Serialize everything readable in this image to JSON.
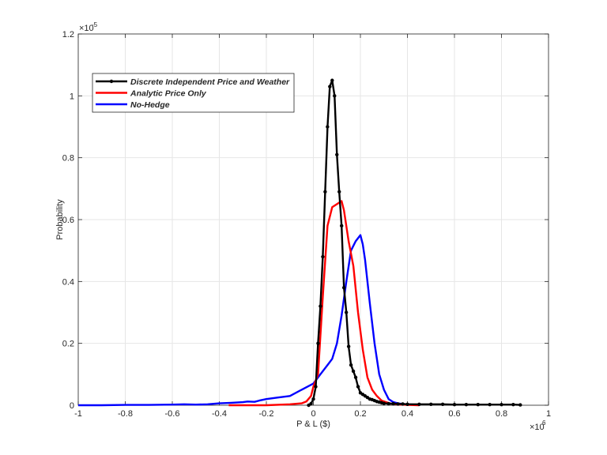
{
  "chart_data": {
    "type": "line",
    "title": "",
    "xlabel": "P & L ($)",
    "ylabel": "Probability",
    "x_exponent_label": "×10",
    "x_exponent_power": "6",
    "y_exponent_label": "×10",
    "y_exponent_power": "-5",
    "xlim": [
      -1,
      1
    ],
    "ylim": [
      0,
      1.2
    ],
    "x_ticks": [
      -1,
      -0.8,
      -0.6,
      -0.4,
      -0.2,
      0,
      0.2,
      0.4,
      0.6,
      0.8,
      1
    ],
    "x_tick_labels": [
      "-1",
      "-0.8",
      "-0.6",
      "-0.4",
      "-0.2",
      "0",
      "0.2",
      "0.4",
      "0.6",
      "0.8",
      "1"
    ],
    "y_ticks": [
      0,
      0.2,
      0.4,
      0.6,
      0.8,
      1,
      1.2
    ],
    "y_tick_labels": [
      "0",
      "0.2",
      "0.4",
      "0.6",
      "0.8",
      "1",
      "1.2"
    ],
    "grid": true,
    "legend_position": "top-left",
    "series": [
      {
        "name": "Discrete Independent Price and Weather",
        "color": "#000000",
        "markers": true,
        "x": [
          -0.02,
          -0.01,
          0.0,
          0.01,
          0.02,
          0.03,
          0.04,
          0.05,
          0.06,
          0.07,
          0.08,
          0.09,
          0.1,
          0.11,
          0.12,
          0.13,
          0.14,
          0.15,
          0.16,
          0.17,
          0.18,
          0.19,
          0.2,
          0.21,
          0.22,
          0.23,
          0.24,
          0.25,
          0.26,
          0.27,
          0.28,
          0.29,
          0.3,
          0.32,
          0.34,
          0.36,
          0.38,
          0.4,
          0.45,
          0.5,
          0.55,
          0.6,
          0.65,
          0.7,
          0.75,
          0.8,
          0.85,
          0.88
        ],
        "y": [
          0.0,
          0.005,
          0.02,
          0.06,
          0.2,
          0.32,
          0.48,
          0.69,
          0.9,
          1.03,
          1.05,
          1.0,
          0.81,
          0.69,
          0.58,
          0.38,
          0.3,
          0.19,
          0.13,
          0.11,
          0.09,
          0.06,
          0.04,
          0.035,
          0.03,
          0.025,
          0.02,
          0.018,
          0.015,
          0.012,
          0.01,
          0.008,
          0.006,
          0.005,
          0.005,
          0.004,
          0.004,
          0.003,
          0.003,
          0.003,
          0.003,
          0.002,
          0.002,
          0.002,
          0.002,
          0.002,
          0.002,
          0.001
        ]
      },
      {
        "name": "Analytic Price Only",
        "color": "#ff0000",
        "markers": false,
        "x": [
          -0.36,
          -0.3,
          -0.2,
          -0.1,
          -0.05,
          -0.03,
          -0.01,
          0.0,
          0.02,
          0.04,
          0.06,
          0.08,
          0.1,
          0.12,
          0.13,
          0.15,
          0.17,
          0.19,
          0.21,
          0.23,
          0.25,
          0.27,
          0.29,
          0.31,
          0.33,
          0.35,
          0.4,
          0.45
        ],
        "y": [
          0.0,
          0.0,
          0.0,
          0.003,
          0.006,
          0.012,
          0.03,
          0.06,
          0.1,
          0.35,
          0.58,
          0.64,
          0.65,
          0.66,
          0.63,
          0.53,
          0.45,
          0.3,
          0.18,
          0.09,
          0.05,
          0.03,
          0.015,
          0.01,
          0.005,
          0.003,
          0.001,
          0.0
        ]
      },
      {
        "name": "No-Hedge",
        "color": "#0000ff",
        "markers": false,
        "x": [
          -1.0,
          -0.9,
          -0.8,
          -0.7,
          -0.6,
          -0.55,
          -0.5,
          -0.45,
          -0.4,
          -0.35,
          -0.3,
          -0.28,
          -0.25,
          -0.23,
          -0.2,
          -0.15,
          -0.1,
          -0.05,
          0.0,
          0.03,
          0.06,
          0.08,
          0.1,
          0.12,
          0.14,
          0.16,
          0.18,
          0.2,
          0.21,
          0.22,
          0.24,
          0.26,
          0.28,
          0.3,
          0.32,
          0.34,
          0.36,
          0.38,
          0.4,
          0.45
        ],
        "y": [
          0.0,
          0.0,
          0.001,
          0.001,
          0.002,
          0.003,
          0.002,
          0.003,
          0.006,
          0.008,
          0.01,
          0.012,
          0.011,
          0.015,
          0.02,
          0.025,
          0.03,
          0.05,
          0.07,
          0.1,
          0.13,
          0.15,
          0.2,
          0.29,
          0.4,
          0.5,
          0.53,
          0.55,
          0.52,
          0.47,
          0.33,
          0.2,
          0.1,
          0.05,
          0.02,
          0.01,
          0.006,
          0.004,
          0.003,
          0.001
        ]
      }
    ]
  }
}
